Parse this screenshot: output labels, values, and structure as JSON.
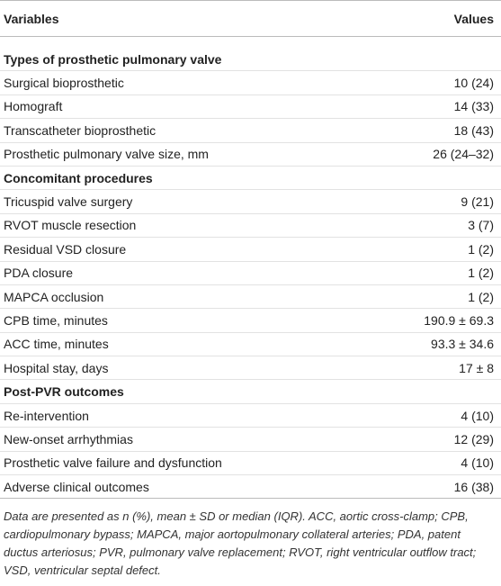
{
  "table": {
    "header": [
      "Variables",
      "Values"
    ],
    "sections": [
      {
        "title": "Types of prosthetic pulmonary valve",
        "rows": [
          [
            "Surgical bioprosthetic",
            "10 (24)"
          ],
          [
            "Homograft",
            "14 (33)"
          ],
          [
            "Transcatheter bioprosthetic",
            "18 (43)"
          ],
          [
            "Prosthetic pulmonary valve size, mm",
            "26 (24–32)"
          ]
        ]
      },
      {
        "title": "Concomitant procedures",
        "rows": [
          [
            "Tricuspid valve surgery",
            "9 (21)"
          ],
          [
            "RVOT muscle resection",
            "3 (7)"
          ],
          [
            "Residual VSD closure",
            "1 (2)"
          ],
          [
            "PDA closure",
            "1 (2)"
          ],
          [
            "MAPCA occlusion",
            "1 (2)"
          ],
          [
            "CPB time, minutes",
            "190.9 ± 69.3"
          ],
          [
            "ACC time, minutes",
            "93.3 ± 34.6"
          ],
          [
            "Hospital stay, days",
            "17 ± 8"
          ]
        ]
      },
      {
        "title": "Post-PVR outcomes",
        "rows": [
          [
            "Re-intervention",
            "4 (10)"
          ],
          [
            "New-onset arrhythmias",
            "12 (29)"
          ],
          [
            "Prosthetic valve failure and dysfunction",
            "4 (10)"
          ],
          [
            "Adverse clinical outcomes",
            "16 (38)"
          ]
        ]
      }
    ],
    "footnote": "Data are presented as n (%), mean ± SD or median (IQR). ACC, aortic cross-clamp; CPB, cardiopulmonary bypass; MAPCA, major aortopulmonary collateral arteries; PDA, patent ductus arteriosus; PVR, pulmonary valve replacement; RVOT, right ventricular outflow tract; VSD, ventricular septal defect."
  }
}
